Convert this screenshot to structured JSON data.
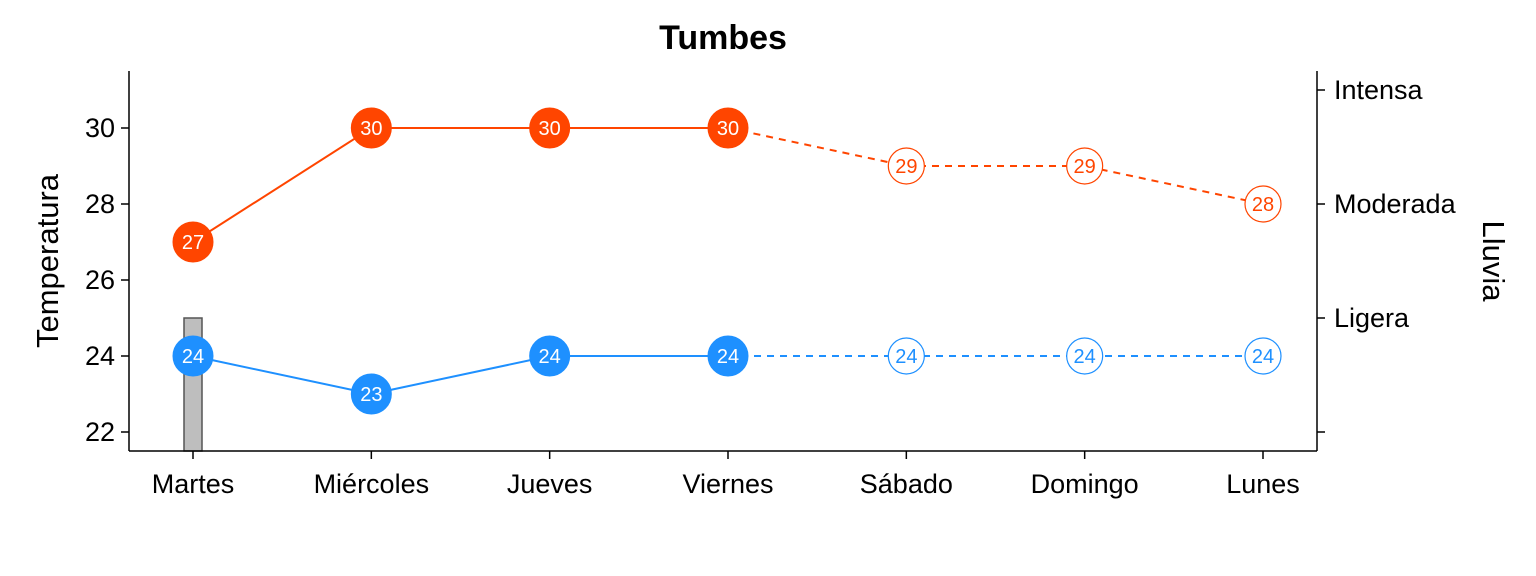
{
  "chart_data": {
    "type": "line",
    "title": "Tumbes",
    "xlabel": "",
    "ylabel": "Temperatura",
    "y2label": "Lluvia",
    "categories": [
      "Martes",
      "Miércoles",
      "Jueves",
      "Viernes",
      "Sábado",
      "Domingo",
      "Lunes"
    ],
    "ylim": [
      21.5,
      31.5
    ],
    "yticks": [
      22,
      24,
      26,
      28,
      30
    ],
    "y2_ticks": [
      {
        "label": "",
        "value": 22
      },
      {
        "label": "Ligera",
        "value": 25
      },
      {
        "label": "Moderada",
        "value": 28
      },
      {
        "label": "Intensa",
        "value": 31
      }
    ],
    "observed_count": 4,
    "series": [
      {
        "values": [
          27,
          30,
          30,
          30,
          29,
          29,
          28
        ],
        "color": "#FF4500"
      },
      {
        "values": [
          24,
          23,
          24,
          24,
          24,
          24,
          24
        ],
        "color": "#1E90FF"
      }
    ],
    "rain_bars": [
      {
        "category": "Martes",
        "value": 25,
        "color": "#BEBEBE"
      }
    ],
    "grid": false,
    "legend": "none"
  }
}
